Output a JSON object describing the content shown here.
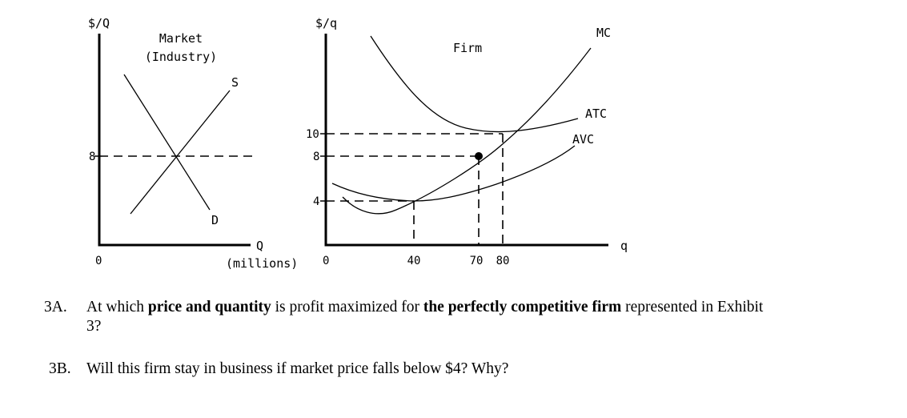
{
  "market": {
    "y_axis_label": "$/Q",
    "title_line1": "Market",
    "title_line2": "(Industry)",
    "supply_label": "S",
    "demand_label": "D",
    "origin_label": "0",
    "price_tick": "8",
    "x_axis_label": "Q",
    "x_axis_sublabel": "(millions)"
  },
  "firm": {
    "y_axis_label": "$/q",
    "title": "Firm",
    "mc_label": "MC",
    "atc_label": "ATC",
    "avc_label": "AVC",
    "origin_label": "0",
    "x_axis_label": "q",
    "y_ticks": [
      "10",
      "8",
      "4"
    ],
    "x_ticks": [
      "40",
      "70",
      "80"
    ]
  },
  "chart_data": {
    "type": "line",
    "panels": [
      {
        "title": "Market (Industry)",
        "ylabel": "$/Q",
        "xlabel": "Q (millions)",
        "series": [
          {
            "name": "S",
            "shape": "upward-sloping line"
          },
          {
            "name": "D",
            "shape": "downward-sloping line"
          }
        ],
        "equilibrium_price": 8
      },
      {
        "title": "Firm",
        "ylabel": "$/q",
        "xlabel": "q",
        "series": [
          {
            "name": "MC",
            "shape": "U-shaped, rising"
          },
          {
            "name": "ATC",
            "shape": "U-shaped, minimum at q=80, $10"
          },
          {
            "name": "AVC",
            "shape": "U-shaped, minimum at q=40, $4"
          }
        ],
        "highlighted_points": [
          {
            "q": 70,
            "price": 8
          },
          {
            "q": 80,
            "price": 10
          },
          {
            "q": 40,
            "price": 4
          }
        ]
      }
    ]
  },
  "questions": [
    {
      "number": "3A.",
      "parts": [
        {
          "text": "At which ",
          "bold": false
        },
        {
          "text": "price and quantity",
          "bold": true
        },
        {
          "text": " is profit maximized for ",
          "bold": false
        },
        {
          "text": "the perfectly competitive firm",
          "bold": true
        },
        {
          "text": " represented in Exhibit",
          "bold": false
        }
      ],
      "line2": "3?"
    },
    {
      "number": "3B.",
      "text": "Will this firm stay in business if market price falls below $4? Why?"
    }
  ]
}
